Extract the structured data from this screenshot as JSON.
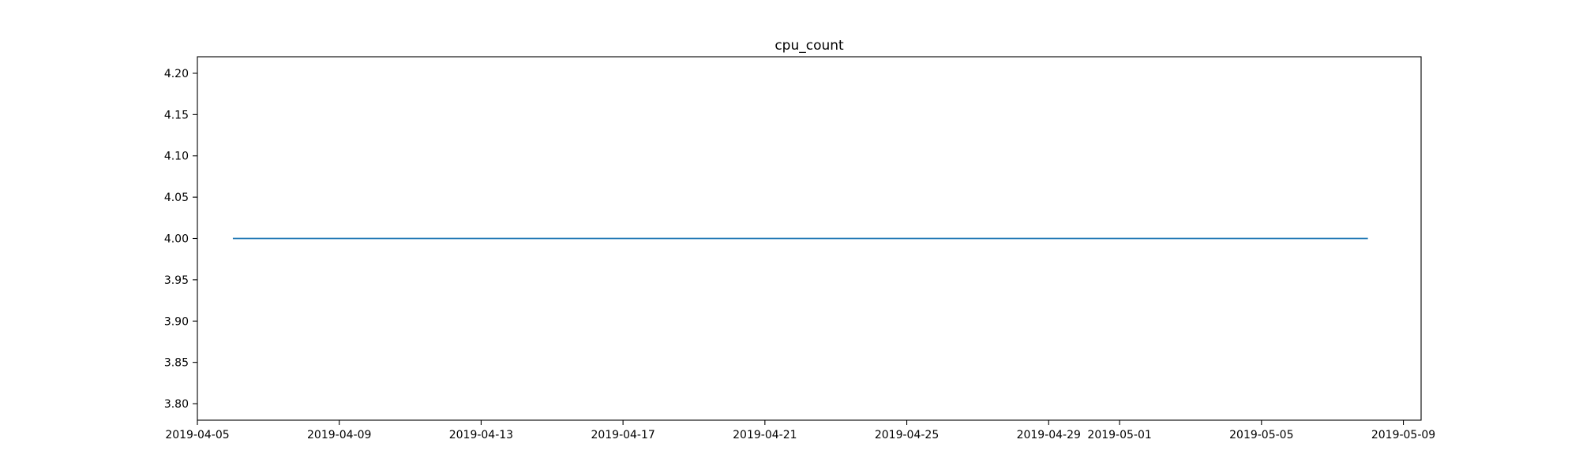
{
  "chart_data": {
    "type": "line",
    "title": "cpu_count",
    "xlabel": "",
    "ylabel": "",
    "x_type": "date",
    "xlim": [
      "2019-04-05T00:00:00",
      "2019-05-09T12:00:00"
    ],
    "ylim": [
      3.78,
      4.22
    ],
    "x_ticks": [
      "2019-04-05",
      "2019-04-09",
      "2019-04-13",
      "2019-04-17",
      "2019-04-21",
      "2019-04-25",
      "2019-04-29",
      "2019-05-01",
      "2019-05-05",
      "2019-05-09"
    ],
    "y_ticks": [
      "3.80",
      "3.85",
      "3.90",
      "3.95",
      "4.00",
      "4.05",
      "4.10",
      "4.15",
      "4.20"
    ],
    "grid": false,
    "series": [
      {
        "color": "#1f77b4",
        "x": [
          "2019-04-06T00:00:00",
          "2019-05-08T00:00:00"
        ],
        "y": [
          4.0,
          4.0
        ]
      }
    ]
  }
}
